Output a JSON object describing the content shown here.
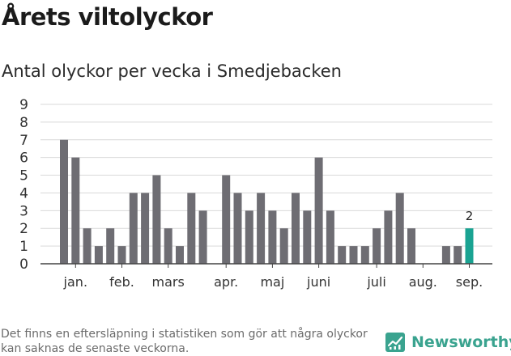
{
  "title": "Årets viltolyckor",
  "subtitle": "Antal olyckor per vecka i Smedjebacken",
  "footnote": "Det finns en eftersläpning i statistiken som gör att några olyckor kan saknas de senaste veckorna.",
  "brand": "Newsworthy",
  "colors": {
    "bar": "#6e6d73",
    "highlight": "#1aa392",
    "grid": "#d9d9d9",
    "brand": "#3aa38f"
  },
  "chart_data": {
    "type": "bar",
    "values": [
      7,
      6,
      2,
      1,
      2,
      1,
      4,
      4,
      5,
      2,
      1,
      4,
      3,
      0,
      5,
      4,
      3,
      4,
      3,
      2,
      4,
      3,
      6,
      3,
      1,
      1,
      1,
      2,
      3,
      4,
      2,
      0,
      0,
      1,
      1,
      2
    ],
    "highlight_index": 35,
    "highlight_label": "2",
    "yticks": [
      "0",
      "1",
      "2",
      "3",
      "4",
      "5",
      "6",
      "7",
      "8",
      "9"
    ],
    "ylim": [
      0,
      9
    ],
    "month_labels": [
      {
        "label": "jan.",
        "at_week": 1.5
      },
      {
        "label": "feb.",
        "at_week": 5.5
      },
      {
        "label": "mars",
        "at_week": 9.5
      },
      {
        "label": "apr.",
        "at_week": 14.5
      },
      {
        "label": "maj",
        "at_week": 18.5
      },
      {
        "label": "juni",
        "at_week": 22.5
      },
      {
        "label": "juli",
        "at_week": 27.5
      },
      {
        "label": "aug.",
        "at_week": 31.5
      },
      {
        "label": "sep.",
        "at_week": 35.5
      }
    ],
    "grid": true
  }
}
